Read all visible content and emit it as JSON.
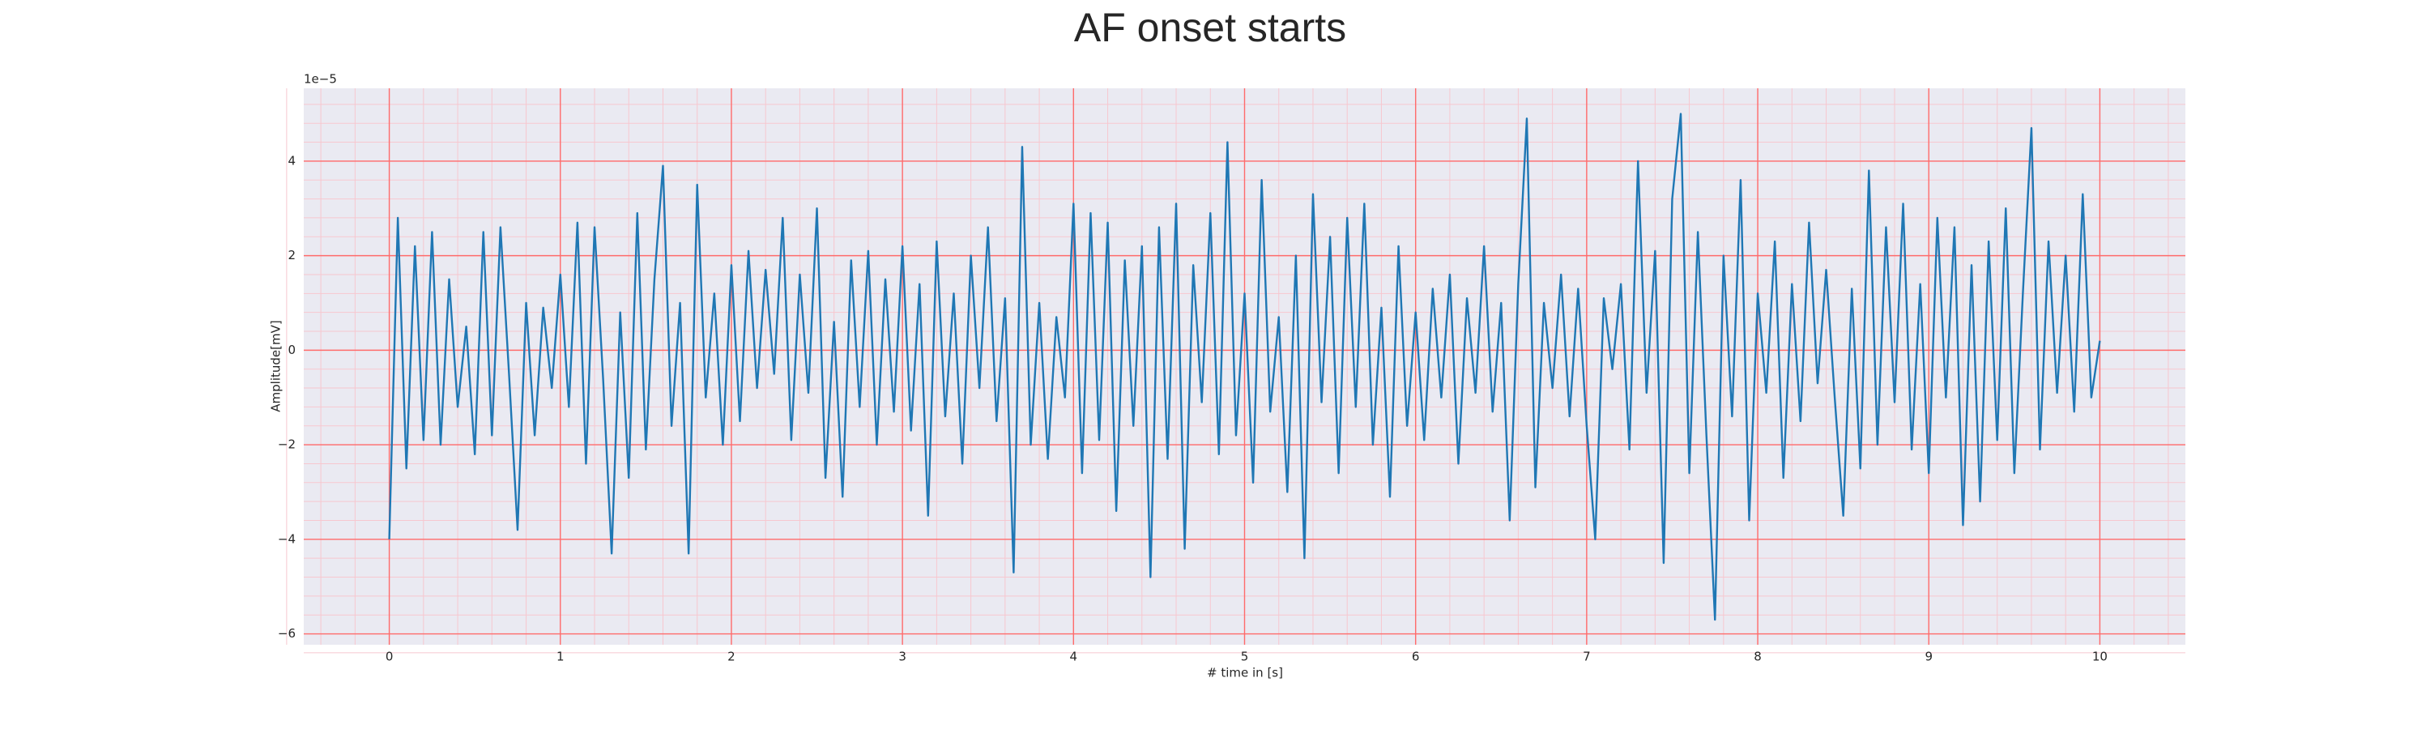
{
  "chart_data": {
    "type": "line",
    "title": "AF onset starts",
    "xlabel": "# time in [s]",
    "ylabel": "Amplitude[mV]",
    "y_offset_label": "1e−5",
    "color": "#1f77b4",
    "background": "#eaeaf2",
    "grid": true,
    "grid_color": "#ff6b6b",
    "minor_grid": true,
    "minor_grid_color": "#f7c7cf",
    "xlim": [
      -0.5,
      10.5
    ],
    "xticks": [
      0,
      1,
      2,
      3,
      4,
      5,
      6,
      7,
      8,
      9,
      10
    ],
    "ylim": [
      -6.23,
      5.54
    ],
    "yticks": [
      {
        "value": -6,
        "label": "−6"
      },
      {
        "value": -4,
        "label": "−4"
      },
      {
        "value": -2,
        "label": "−2"
      },
      0,
      2,
      4
    ],
    "x": [
      0,
      0.05,
      0.1,
      0.15,
      0.2,
      0.25,
      0.3,
      0.35,
      0.4,
      0.45,
      0.5,
      0.55,
      0.6,
      0.65,
      0.7,
      0.75,
      0.8,
      0.85,
      0.9,
      0.95,
      1,
      1.05,
      1.1,
      1.15,
      1.2,
      1.25,
      1.3,
      1.35,
      1.4,
      1.45,
      1.5,
      1.55,
      1.6,
      1.65,
      1.7,
      1.75,
      1.8,
      1.85,
      1.9,
      1.95,
      2,
      2.05,
      2.1,
      2.15,
      2.2,
      2.25,
      2.3,
      2.35,
      2.4,
      2.45,
      2.5,
      2.55,
      2.6,
      2.65,
      2.7,
      2.75,
      2.8,
      2.85,
      2.9,
      2.95,
      3,
      3.05,
      3.1,
      3.15,
      3.2,
      3.25,
      3.3,
      3.35,
      3.4,
      3.45,
      3.5,
      3.55,
      3.6,
      3.65,
      3.7,
      3.75,
      3.8,
      3.85,
      3.9,
      3.95,
      4,
      4.05,
      4.1,
      4.15,
      4.2,
      4.25,
      4.3,
      4.35,
      4.4,
      4.45,
      4.5,
      4.55,
      4.6,
      4.65,
      4.7,
      4.75,
      4.8,
      4.85,
      4.9,
      4.95,
      5,
      5.05,
      5.1,
      5.15,
      5.2,
      5.25,
      5.3,
      5.35,
      5.4,
      5.45,
      5.5,
      5.55,
      5.6,
      5.65,
      5.7,
      5.75,
      5.8,
      5.85,
      5.9,
      5.95,
      6,
      6.05,
      6.1,
      6.15,
      6.2,
      6.25,
      6.3,
      6.35,
      6.4,
      6.45,
      6.5,
      6.55,
      6.6,
      6.65,
      6.7,
      6.75,
      6.8,
      6.85,
      6.9,
      6.95,
      7,
      7.05,
      7.1,
      7.15,
      7.2,
      7.25,
      7.3,
      7.35,
      7.4,
      7.45,
      7.5,
      7.55,
      7.6,
      7.65,
      7.7,
      7.75,
      7.8,
      7.85,
      7.9,
      7.95,
      8,
      8.05,
      8.1,
      8.15,
      8.2,
      8.25,
      8.3,
      8.35,
      8.4,
      8.45,
      8.5,
      8.55,
      8.6,
      8.65,
      8.7,
      8.75,
      8.8,
      8.85,
      8.9,
      8.95,
      9,
      9.05,
      9.1,
      9.15,
      9.2,
      9.25,
      9.3,
      9.35,
      9.4,
      9.45,
      9.5,
      9.55,
      9.6,
      9.65,
      9.7,
      9.75,
      9.8,
      9.85,
      9.9,
      9.95,
      10
    ],
    "values": [
      -4.0,
      2.8,
      -2.5,
      2.2,
      -1.9,
      2.5,
      -2.0,
      1.5,
      -1.2,
      0.5,
      -2.2,
      2.5,
      -1.8,
      2.6,
      -0.5,
      -3.8,
      1.0,
      -1.8,
      0.9,
      -0.8,
      1.6,
      -1.2,
      2.7,
      -2.4,
      2.6,
      -0.6,
      -4.3,
      0.8,
      -2.7,
      2.9,
      -2.1,
      1.5,
      3.9,
      -1.6,
      1.0,
      -4.3,
      3.5,
      -1.0,
      1.2,
      -2.0,
      1.8,
      -1.5,
      2.1,
      -0.8,
      1.7,
      -0.5,
      2.8,
      -1.9,
      1.6,
      -0.9,
      3.0,
      -2.7,
      0.6,
      -3.1,
      1.9,
      -1.2,
      2.1,
      -2.0,
      1.5,
      -1.3,
      2.2,
      -1.7,
      1.4,
      -3.5,
      2.3,
      -1.4,
      1.2,
      -2.4,
      2.0,
      -0.8,
      2.6,
      -1.5,
      1.1,
      -4.7,
      4.3,
      -2.0,
      1.0,
      -2.3,
      0.7,
      -1.0,
      3.1,
      -2.6,
      2.9,
      -1.9,
      2.7,
      -3.4,
      1.9,
      -1.6,
      2.2,
      -4.8,
      2.6,
      -2.3,
      3.1,
      -4.2,
      1.8,
      -1.1,
      2.9,
      -2.2,
      4.4,
      -1.8,
      1.2,
      -2.8,
      3.6,
      -1.3,
      0.7,
      -3.0,
      2.0,
      -4.4,
      3.3,
      -1.1,
      2.4,
      -2.6,
      2.8,
      -1.2,
      3.1,
      -2.0,
      0.9,
      -3.1,
      2.2,
      -1.6,
      0.8,
      -1.9,
      1.3,
      -1.0,
      1.6,
      -2.4,
      1.1,
      -0.9,
      2.2,
      -1.3,
      1.0,
      -3.6,
      1.4,
      4.9,
      -2.9,
      1.0,
      -0.8,
      1.6,
      -1.4,
      1.3,
      -1.6,
      -4.0,
      1.1,
      -0.4,
      1.4,
      -2.1,
      4.0,
      -0.9,
      2.1,
      -4.5,
      3.2,
      5.0,
      -2.6,
      2.5,
      -1.8,
      -5.7,
      2.0,
      -1.4,
      3.6,
      -3.6,
      1.2,
      -0.9,
      2.3,
      -2.7,
      1.4,
      -1.5,
      2.7,
      -0.7,
      1.7,
      -1.0,
      -3.5,
      1.3,
      -2.5,
      3.8,
      -2.0,
      2.6,
      -1.1,
      3.1,
      -2.1,
      1.4,
      -2.6,
      2.8,
      -1.0,
      2.6,
      -3.7,
      1.8,
      -3.2,
      2.3,
      -1.9,
      3.0,
      -2.6,
      1.2,
      4.7,
      -2.1,
      2.3,
      -0.9,
      2.0,
      -1.3,
      3.3,
      -1.0,
      0.2
    ]
  }
}
